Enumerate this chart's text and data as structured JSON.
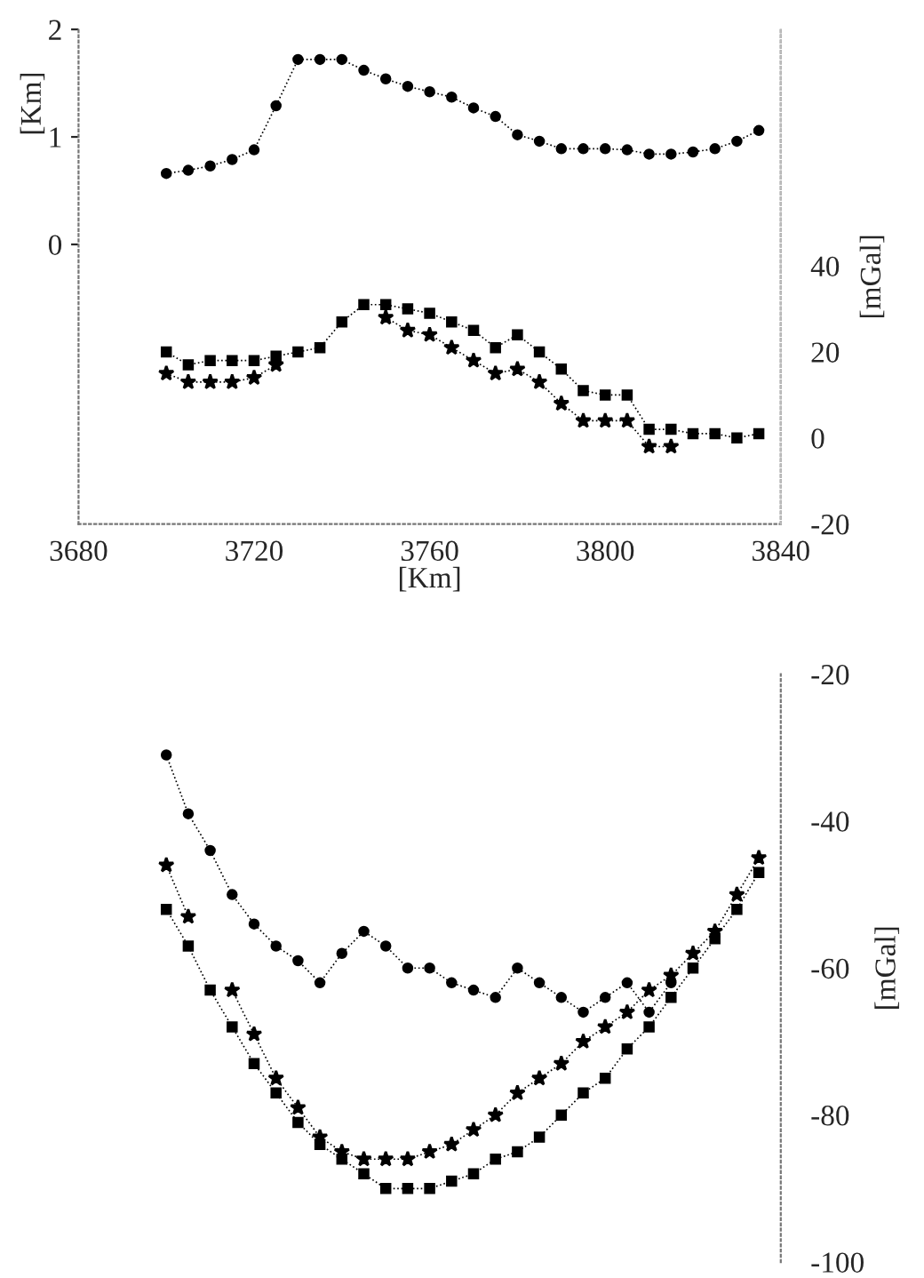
{
  "chart_data": [
    {
      "type": "line",
      "xlabel": "[Km]",
      "ylabel": "[Km]",
      "y2label": "[mGal]",
      "x": [
        3700,
        3705,
        3710,
        3715,
        3720,
        3725,
        3730,
        3735,
        3740,
        3745,
        3750,
        3755,
        3760,
        3765,
        3770,
        3775,
        3780,
        3785,
        3790,
        3795,
        3800,
        3805,
        3810,
        3815,
        3820,
        3825,
        3830,
        3835
      ],
      "xlim": [
        3680,
        3840
      ],
      "xticks": [
        3680,
        3720,
        3760,
        3800,
        3840
      ],
      "ylim": [
        -2.6,
        2
      ],
      "yticks": [
        0,
        1,
        2
      ],
      "y2lim": [
        -20,
        95
      ],
      "y2ticks": [
        -20,
        0,
        20,
        40
      ],
      "grid": false,
      "legend": false,
      "series": [
        {
          "color": "#000000",
          "marker": "circle",
          "line_style": "dotted",
          "values": [
            0.66,
            0.69,
            0.73,
            0.79,
            0.88,
            1.29,
            1.72,
            1.72,
            1.72,
            1.62,
            1.54,
            1.47,
            1.42,
            1.37,
            1.27,
            1.19,
            1.02,
            0.96,
            0.89,
            0.89,
            0.89,
            0.88,
            0.84,
            0.84,
            0.86,
            0.89,
            0.96,
            1.06
          ]
        },
        {
          "color": "#000000",
          "marker": "square",
          "line_style": "dotted",
          "axis": "y2",
          "values": [
            20,
            17,
            18,
            18,
            18,
            19,
            20,
            21,
            27,
            31,
            31,
            30,
            29,
            27,
            25,
            21,
            24,
            20,
            16,
            11,
            10,
            10,
            2,
            2,
            1,
            1,
            0,
            1
          ]
        },
        {
          "color": "#000000",
          "marker": "star",
          "line_style": "dotted",
          "axis": "y2",
          "values": [
            15,
            13,
            13,
            13,
            14,
            17,
            null,
            null,
            null,
            null,
            28,
            25,
            24,
            21,
            18,
            15,
            16,
            13,
            8,
            4,
            4,
            4,
            -2,
            -2,
            null,
            null,
            null,
            null
          ]
        }
      ]
    },
    {
      "type": "line",
      "y2label": "[mGal]",
      "tick_labels": "y",
      "x": [
        3700,
        3705,
        3710,
        3715,
        3720,
        3725,
        3730,
        3735,
        3740,
        3745,
        3750,
        3755,
        3760,
        3765,
        3770,
        3775,
        3780,
        3785,
        3790,
        3795,
        3800,
        3805,
        3810,
        3815,
        3820,
        3825,
        3830,
        3835
      ],
      "xlim": [
        3680,
        3840
      ],
      "y2lim": [
        -100,
        -20
      ],
      "y2ticks": [
        -100,
        -80,
        -60,
        -40,
        -20
      ],
      "grid": false,
      "legend": false,
      "series": [
        {
          "color": "#000000",
          "marker": "circle",
          "line_style": "dotted",
          "axis": "y2",
          "values": [
            -31,
            -39,
            -44,
            -50,
            -54,
            -57,
            -59,
            -62,
            -58,
            -55,
            -57,
            -60,
            -60,
            -62,
            -63,
            -64,
            -60,
            -62,
            -64,
            -66,
            -64,
            -62,
            -66,
            -62,
            null,
            null,
            null,
            null
          ]
        },
        {
          "color": "#000000",
          "marker": "star",
          "line_style": "dotted",
          "axis": "y2",
          "values": [
            -46,
            -53,
            null,
            -63,
            -69,
            -75,
            -79,
            -83,
            -85,
            -86,
            -86,
            -86,
            -85,
            -84,
            -82,
            -80,
            -77,
            -75,
            -73,
            -70,
            -68,
            -66,
            -63,
            -61,
            -58,
            -55,
            -50,
            -45
          ]
        },
        {
          "color": "#000000",
          "marker": "square",
          "line_style": "dotted",
          "axis": "y2",
          "values": [
            -52,
            -57,
            -63,
            -68,
            -73,
            -77,
            -81,
            -84,
            -86,
            -88,
            -90,
            -90,
            -90,
            -89,
            -88,
            -86,
            -85,
            -83,
            -80,
            -77,
            -75,
            -71,
            -68,
            -64,
            -60,
            -56,
            -52,
            -47
          ]
        }
      ]
    }
  ]
}
